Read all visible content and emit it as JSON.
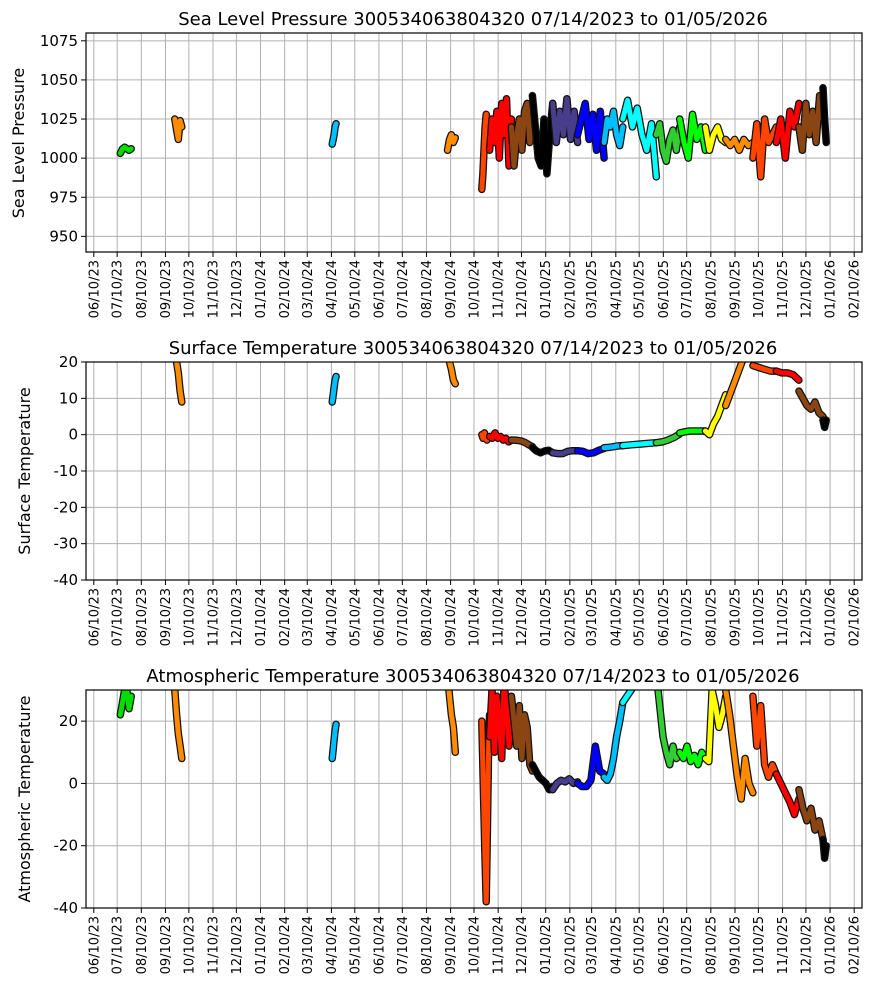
{
  "chart_data": [
    {
      "type": "line",
      "key": "slp",
      "title": "Sea Level Pressure 300534063804320  07/14/2023 to 01/05/2026",
      "xlabel": "",
      "ylabel": "Sea Level Pressure",
      "ylim": [
        940,
        1080
      ],
      "yticks": [
        950,
        975,
        1000,
        1025,
        1050,
        1075
      ],
      "grid": true
    },
    {
      "type": "line",
      "key": "sst",
      "title": "Surface Temperature 300534063804320  07/14/2023 to 01/05/2026",
      "xlabel": "",
      "ylabel": "Surface Temperature",
      "ylim": [
        -40,
        20
      ],
      "yticks": [
        -40,
        -30,
        -20,
        -10,
        0,
        10,
        20
      ],
      "grid": true
    },
    {
      "type": "line",
      "key": "air",
      "title": "Atmospheric Temperature 300534063804320  07/14/2023 to 01/05/2026",
      "xlabel": "",
      "ylabel": "Atmospheric Temperature",
      "ylim": [
        -40,
        30
      ],
      "yticks": [
        -40,
        -20,
        0,
        20
      ],
      "grid": true
    }
  ],
  "x_axis": {
    "xlim": [
      "2023-05-31",
      "2026-02-20"
    ],
    "ticks": [
      "2023-06-10",
      "2023-07-10",
      "2023-08-10",
      "2023-09-10",
      "2023-10-10",
      "2023-11-10",
      "2023-12-10",
      "2024-01-10",
      "2024-02-10",
      "2024-03-10",
      "2024-04-10",
      "2024-05-10",
      "2024-06-10",
      "2024-07-10",
      "2024-08-10",
      "2024-09-10",
      "2024-10-10",
      "2024-11-10",
      "2024-12-10",
      "2025-01-10",
      "2025-02-10",
      "2025-03-10",
      "2025-04-10",
      "2025-05-10",
      "2025-06-10",
      "2025-07-10",
      "2025-08-10",
      "2025-09-10",
      "2025-10-10",
      "2025-11-10",
      "2025-12-10",
      "2026-01-10",
      "2026-02-10"
    ],
    "tick_labels": [
      "06/10/23",
      "07/10/23",
      "08/10/23",
      "09/10/23",
      "10/10/23",
      "11/10/23",
      "12/10/23",
      "01/10/24",
      "02/10/24",
      "03/10/24",
      "04/10/24",
      "05/10/24",
      "06/10/24",
      "07/10/24",
      "08/10/24",
      "09/10/24",
      "10/10/24",
      "11/10/24",
      "12/10/24",
      "01/10/25",
      "02/10/25",
      "03/10/25",
      "04/10/25",
      "05/10/25",
      "06/10/25",
      "07/10/25",
      "08/10/25",
      "09/10/25",
      "10/10/25",
      "11/10/25",
      "12/10/25",
      "01/10/26",
      "02/10/26"
    ]
  },
  "segments": [
    {
      "color": "#00DD00",
      "start": "2023-07-14",
      "end": "2023-07-28",
      "slp": [
        1003,
        1006,
        1007,
        null,
        1005,
        1006
      ],
      "sst": [],
      "air": [
        22,
        26,
        30,
        30,
        24,
        28
      ]
    },
    {
      "color": "#FF8C00",
      "start": "2023-09-22",
      "end": "2023-10-01",
      "slp": [
        1025,
        1018,
        1012,
        1024,
        1020
      ],
      "sst": [
        25,
        20,
        17,
        12,
        9
      ],
      "air": [
        30,
        22,
        16,
        12,
        8
      ]
    },
    {
      "color": "#00BFFF",
      "start": "2024-04-11",
      "end": "2024-04-16",
      "slp": [
        1009,
        1012,
        1015,
        1020,
        1022
      ],
      "sst": [
        9,
        11,
        13,
        15,
        16
      ],
      "air": [
        8,
        11,
        14,
        17,
        19
      ]
    },
    {
      "color": "#FF8C00",
      "start": "2024-09-06",
      "end": "2024-09-16",
      "slp": [
        1005,
        1012,
        1015,
        1010,
        1013
      ],
      "sst": [
        25,
        20,
        18,
        15,
        14
      ],
      "air": [
        35,
        28,
        22,
        18,
        10
      ]
    },
    {
      "color": "#FF4500",
      "start": "2024-10-20",
      "end": "2024-10-30",
      "slp": [
        980,
        990,
        1005,
        1020,
        1028,
        1010,
        1015,
        1025
      ],
      "sst": [
        0,
        -1,
        0.5,
        -1,
        -1.5,
        -1,
        -0.5
      ],
      "air": [
        20,
        5,
        -10,
        -25,
        -38,
        -15,
        10,
        22
      ]
    },
    {
      "color": "#FF0000",
      "start": "2024-10-30",
      "end": "2024-11-27",
      "slp": [
        1005,
        1025,
        1010,
        1030,
        1000,
        1035,
        1015,
        1038,
        995,
        1025
      ],
      "sst": [
        -0.5,
        -1,
        0.5,
        -1,
        -0.5,
        -1.5,
        -1,
        -2,
        -1.5
      ],
      "air": [
        15,
        30,
        10,
        28,
        20,
        8,
        32,
        25,
        12,
        22
      ]
    },
    {
      "color": "#8B4513",
      "start": "2024-11-27",
      "end": "2024-12-24",
      "slp": [
        1020,
        995,
        1015,
        1025,
        1005,
        1030,
        1035,
        1010,
        1030
      ],
      "sst": [
        -1.5,
        -1.5,
        -1.6,
        -1.8,
        -2.2,
        -2.8,
        -3.3
      ],
      "air": [
        28,
        20,
        12,
        25,
        8,
        22,
        18,
        6,
        4
      ]
    },
    {
      "color": "#000000",
      "start": "2024-12-24",
      "end": "2025-01-19",
      "slp": [
        1040,
        1020,
        1000,
        995,
        1025,
        990,
        1015,
        1035
      ],
      "sst": [
        -3.5,
        -4.5,
        -5,
        -4.5,
        -4.3,
        -5
      ],
      "air": [
        6,
        4,
        2,
        1,
        0,
        -2,
        -1
      ]
    },
    {
      "color": "#483D8B",
      "start": "2025-01-19",
      "end": "2025-02-20",
      "slp": [
        1035,
        1010,
        1030,
        1015,
        1038,
        1012,
        1030,
        1010
      ],
      "sst": [
        -5,
        -5.2,
        -5.2,
        -4.6,
        -4.4,
        -4.4
      ],
      "air": [
        -2,
        0,
        1,
        0.5,
        1.5,
        0,
        0.5
      ]
    },
    {
      "color": "#0000FF",
      "start": "2025-02-20",
      "end": "2025-03-26",
      "slp": [
        1015,
        1025,
        1035,
        1012,
        1028,
        1005,
        1030,
        1000
      ],
      "sst": [
        -4.4,
        -4.6,
        -5.2,
        -5,
        -4.3,
        -3.8
      ],
      "air": [
        0,
        -1,
        -1,
        1,
        12,
        4,
        3
      ]
    },
    {
      "color": "#00BFFF",
      "start": "2025-03-26",
      "end": "2025-04-19",
      "slp": [
        1010,
        1025,
        1020,
        1030,
        1015,
        1008,
        1020
      ],
      "sst": [
        -3.6,
        -3.5,
        -3.3,
        -3.1,
        -3
      ],
      "air": [
        2,
        1,
        3,
        8,
        15,
        20,
        26
      ]
    },
    {
      "color": "#00FFFF",
      "start": "2025-04-19",
      "end": "2025-06-01",
      "slp": [
        1025,
        1037,
        1020,
        1032,
        1015,
        1005,
        1022,
        988
      ],
      "sst": [
        -3,
        -2.8,
        -2.6,
        -2.4,
        -2.2
      ],
      "air": [
        26,
        30,
        34,
        38,
        40
      ]
    },
    {
      "color": "#32CD32",
      "start": "2025-06-01",
      "end": "2025-07-01",
      "slp": [
        1015,
        1022,
        1005,
        998,
        1012,
        1018,
        1005,
        1020
      ],
      "sst": [
        -2.2,
        -2,
        -1.5,
        -0.8,
        0.2
      ],
      "air": [
        35,
        25,
        15,
        10,
        6,
        12,
        8,
        9
      ]
    },
    {
      "color": "#00FF00",
      "start": "2025-07-01",
      "end": "2025-08-03",
      "slp": [
        1025,
        1010,
        1000,
        1028,
        1012,
        1020,
        1005
      ],
      "sst": [
        0.5,
        0.8,
        1,
        1,
        1,
        1
      ],
      "air": [
        10,
        8,
        12,
        7,
        9,
        6,
        10,
        8
      ]
    },
    {
      "color": "#FFFF00",
      "start": "2025-08-03",
      "end": "2025-08-29",
      "slp": [
        1020,
        1005,
        1015,
        1020,
        1012,
        1010
      ],
      "sst": [
        1,
        0,
        3,
        5,
        8,
        11
      ],
      "air": [
        8,
        7,
        30,
        25,
        18,
        22,
        28
      ]
    },
    {
      "color": "#FF8C00",
      "start": "2025-08-29",
      "end": "2025-10-03",
      "slp": [
        1012,
        1008,
        1012,
        1005,
        1012,
        1008,
        1010
      ],
      "sst": [
        8,
        12,
        16,
        20,
        24,
        22
      ],
      "air": [
        30,
        22,
        12,
        2,
        -5,
        8,
        0,
        -3
      ]
    },
    {
      "color": "#FF4500",
      "start": "2025-10-03",
      "end": "2025-11-02",
      "slp": [
        1000,
        1022,
        988,
        1025,
        1010,
        1015,
        1020
      ],
      "sst": [
        19,
        18.5,
        18,
        17.5,
        17.5
      ],
      "air": [
        28,
        12,
        25,
        6,
        2,
        6,
        3
      ]
    },
    {
      "color": "#FF0000",
      "start": "2025-11-02",
      "end": "2025-12-01",
      "slp": [
        1010,
        1025,
        1000,
        1030,
        1020,
        1035
      ],
      "sst": [
        17.5,
        17,
        17,
        16.5,
        15
      ],
      "air": [
        3,
        0,
        -3,
        -6,
        -10,
        -5
      ]
    },
    {
      "color": "#8B4513",
      "start": "2025-12-01",
      "end": "2026-01-01",
      "slp": [
        1020,
        1005,
        1035,
        1015,
        1030,
        1010,
        1040,
        1025
      ],
      "sst": [
        12,
        10,
        8,
        7,
        9,
        6,
        5
      ],
      "air": [
        -2,
        -8,
        -12,
        -8,
        -15,
        -12,
        -18
      ]
    },
    {
      "color": "#000000",
      "start": "2026-01-01",
      "end": "2026-01-05",
      "slp": [
        1045,
        1025,
        1010
      ],
      "sst": [
        4,
        2,
        4
      ],
      "air": [
        -18,
        -24,
        -20
      ]
    }
  ]
}
